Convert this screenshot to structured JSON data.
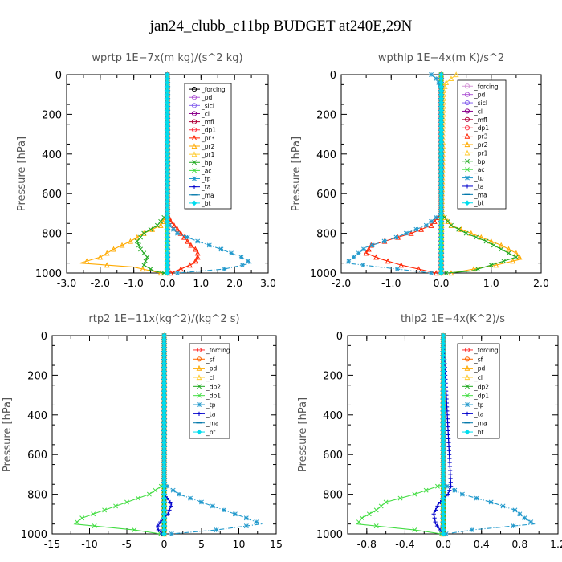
{
  "figure": {
    "title": "jan24_clubb_c11bp  BUDGET at240E,29N"
  },
  "chart_data": [
    {
      "type": "line",
      "title": "wprtp   1E−7x(m kg)/(s^2 kg)",
      "ylabel": "Pressure [hPa]",
      "xlim": [
        -3.0,
        3.0
      ],
      "ylim": [
        1000,
        0
      ],
      "x_tick_labels": [
        "-3.0",
        "-2.0",
        "-1.0",
        "0.0",
        "1.0",
        "2.0",
        "3.0"
      ],
      "y_tick_labels": [
        "0",
        "200",
        "400",
        "600",
        "800",
        "1000"
      ],
      "legend": [
        "_forcing",
        "_pd",
        "_sicl",
        "_cl",
        "_mfl",
        "_dp1",
        "_pr3",
        "_pr2",
        "_pr1",
        "_bp",
        "_ac",
        "_tp",
        "_ta",
        "_ma",
        "_bt"
      ],
      "series": [
        {
          "name": "_forcing",
          "color": "#000000",
          "marker": "circle",
          "p": [
            0,
            1000
          ],
          "x": [
            0,
            0
          ]
        },
        {
          "name": "_pd",
          "color": "#b05ad6",
          "marker": "circle",
          "p": [
            0,
            1000
          ],
          "x": [
            0,
            0
          ]
        },
        {
          "name": "_sicl",
          "color": "#8866ee",
          "marker": "circle",
          "p": [
            0,
            1000
          ],
          "x": [
            0,
            0
          ]
        },
        {
          "name": "_cl",
          "color": "#8b008b",
          "marker": "circle",
          "p": [
            0,
            1000
          ],
          "x": [
            0,
            0
          ]
        },
        {
          "name": "_mfl",
          "color": "#b0003a",
          "marker": "circle",
          "p": [
            0,
            1000
          ],
          "x": [
            0,
            0
          ]
        },
        {
          "name": "_dp1",
          "color": "#ff3344",
          "marker": "circle",
          "p": [
            0,
            1000
          ],
          "x": [
            0,
            0
          ]
        },
        {
          "name": "_pr3",
          "color": "#ff2200",
          "marker": "triangle",
          "p": [
            0,
            700,
            740,
            780,
            820,
            860,
            890,
            920,
            950,
            980,
            1000
          ],
          "x": [
            0,
            0,
            0.1,
            0.3,
            0.5,
            0.7,
            0.9,
            0.9,
            0.8,
            0.4,
            0.1
          ]
        },
        {
          "name": "_pr2",
          "color": "#ffaa00",
          "marker": "triangle",
          "p": [
            0,
            700,
            760,
            800,
            840,
            880,
            920,
            950,
            970,
            1000
          ],
          "x": [
            0,
            0,
            -0.2,
            -0.7,
            -1.1,
            -1.6,
            -2.0,
            -2.6,
            -1.0,
            -0.2
          ]
        },
        {
          "name": "_pr1",
          "color": "#ffcc33",
          "marker": "triangle",
          "p": [
            0,
            1000
          ],
          "x": [
            0,
            0
          ]
        },
        {
          "name": "_bp",
          "color": "#22aa22",
          "marker": "cross",
          "p": [
            0,
            700,
            760,
            800,
            840,
            880,
            920,
            960,
            990,
            1000
          ],
          "x": [
            0,
            0,
            -0.3,
            -0.7,
            -0.9,
            -0.8,
            -0.6,
            -0.7,
            -0.4,
            -0.1
          ]
        },
        {
          "name": "_ac",
          "color": "#44dd44",
          "marker": "cross",
          "p": [
            0,
            1000
          ],
          "x": [
            0,
            0
          ]
        },
        {
          "name": "_tp",
          "color": "#2299cc",
          "marker": "star",
          "p": [
            0,
            750,
            800,
            840,
            880,
            920,
            950,
            980,
            1000
          ],
          "x": [
            0,
            0,
            0.3,
            0.9,
            1.6,
            2.2,
            2.5,
            1.7,
            0.3
          ]
        },
        {
          "name": "_ta",
          "color": "#0000cc",
          "marker": "plus",
          "p": [
            0,
            1000
          ],
          "x": [
            0,
            0
          ]
        },
        {
          "name": "_ma",
          "color": "#0077aa",
          "marker": "dash",
          "p": [
            0,
            1000
          ],
          "x": [
            0,
            0
          ]
        },
        {
          "name": "_bt",
          "color": "#00ddee",
          "marker": "diamond",
          "p": [
            0,
            1000
          ],
          "x": [
            0,
            0
          ]
        }
      ]
    },
    {
      "type": "line",
      "title": "wpthlp   1E−4x(m K)/s^2",
      "ylabel": "Pressure [hPa]",
      "xlim": [
        -2.0,
        2.0
      ],
      "ylim": [
        1000,
        0
      ],
      "x_tick_labels": [
        "-2.0",
        "-1.0",
        "0.0",
        "1.0",
        "2.0"
      ],
      "y_tick_labels": [
        "0",
        "200",
        "400",
        "600",
        "800",
        "1000"
      ],
      "legend": [
        "_forcing",
        "_pd",
        "_sicl",
        "_cl",
        "_mfl",
        "_dp1",
        "_pr3",
        "_pr2",
        "_pr1",
        "_bp",
        "_ac",
        "_tp",
        "_ta",
        "_ma",
        "_bt"
      ],
      "series": [
        {
          "name": "_forcing",
          "color": "#d79ad9",
          "marker": "circle",
          "p": [
            0,
            1000
          ],
          "x": [
            0,
            0
          ]
        },
        {
          "name": "_pd",
          "color": "#b05ad6",
          "marker": "circle",
          "p": [
            0,
            1000
          ],
          "x": [
            0,
            0
          ]
        },
        {
          "name": "_sicl",
          "color": "#8866ee",
          "marker": "circle",
          "p": [
            0,
            1000
          ],
          "x": [
            0,
            0
          ]
        },
        {
          "name": "_cl",
          "color": "#8b008b",
          "marker": "circle",
          "p": [
            0,
            1000
          ],
          "x": [
            0,
            0
          ]
        },
        {
          "name": "_mfl",
          "color": "#b0003a",
          "marker": "circle",
          "p": [
            0,
            1000
          ],
          "x": [
            0,
            0
          ]
        },
        {
          "name": "_dp1",
          "color": "#ff3344",
          "marker": "circle",
          "p": [
            0,
            1000
          ],
          "x": [
            0,
            0
          ]
        },
        {
          "name": "_pr3",
          "color": "#ff2200",
          "marker": "triangle",
          "p": [
            0,
            700,
            760,
            800,
            830,
            860,
            900,
            930,
            960,
            1000
          ],
          "x": [
            0,
            0,
            -0.2,
            -0.6,
            -1.0,
            -1.4,
            -1.5,
            -1.2,
            -0.8,
            -0.1
          ]
        },
        {
          "name": "_pr2",
          "color": "#ffaa00",
          "marker": "triangle",
          "p": [
            0,
            700,
            760,
            800,
            830,
            860,
            900,
            930,
            960,
            1000
          ],
          "x": [
            0,
            0,
            0.2,
            0.6,
            0.9,
            1.2,
            1.5,
            1.6,
            1.1,
            0.2
          ]
        },
        {
          "name": "_pr1",
          "color": "#ffcc33",
          "marker": "triangle",
          "p": [
            0,
            20,
            40,
            80,
            1000
          ],
          "x": [
            0.3,
            0.2,
            0.1,
            0.05,
            0
          ]
        },
        {
          "name": "_bp",
          "color": "#22aa22",
          "marker": "cross",
          "p": [
            0,
            700,
            760,
            800,
            840,
            880,
            920,
            960,
            990,
            1000
          ],
          "x": [
            0,
            0,
            0.2,
            0.5,
            0.9,
            1.2,
            1.5,
            1.0,
            0.6,
            0.1
          ]
        },
        {
          "name": "_ac",
          "color": "#44dd44",
          "marker": "cross",
          "p": [
            0,
            1000
          ],
          "x": [
            0,
            0
          ]
        },
        {
          "name": "_tp",
          "color": "#2299cc",
          "marker": "star",
          "p": [
            0,
            20,
            40,
            80,
            700,
            760,
            820,
            870,
            910,
            950,
            1000
          ],
          "x": [
            -0.2,
            -0.1,
            -0.05,
            0,
            0,
            -0.3,
            -0.9,
            -1.5,
            -1.7,
            -1.9,
            -0.2
          ]
        },
        {
          "name": "_ta",
          "color": "#0000cc",
          "marker": "plus",
          "p": [
            0,
            1000
          ],
          "x": [
            0,
            0
          ]
        },
        {
          "name": "_ma",
          "color": "#0077aa",
          "marker": "dash",
          "p": [
            0,
            1000
          ],
          "x": [
            0,
            0
          ]
        },
        {
          "name": "_bt",
          "color": "#00ddee",
          "marker": "diamond",
          "p": [
            0,
            1000
          ],
          "x": [
            0,
            0
          ]
        }
      ]
    },
    {
      "type": "line",
      "title": "rtp2   1E−11x(kg^2)/(kg^2 s)",
      "ylabel": "Pressure [hPa]",
      "xlim": [
        -15,
        15
      ],
      "ylim": [
        1000,
        0
      ],
      "x_tick_labels": [
        "-15",
        "-10",
        "-5",
        "0",
        "5",
        "10",
        "15"
      ],
      "y_tick_labels": [
        "0",
        "200",
        "400",
        "600",
        "800",
        "1000"
      ],
      "legend": [
        "_forcing",
        "_sf",
        "_pd",
        "_cl",
        "_dp2",
        "_dp1",
        "_tp",
        "_ta",
        "_ma",
        "_bt"
      ],
      "series": [
        {
          "name": "_forcing",
          "color": "#ff3333",
          "marker": "circle",
          "p": [
            0,
            1000
          ],
          "x": [
            0,
            0
          ]
        },
        {
          "name": "_sf",
          "color": "#ff6600",
          "marker": "circle",
          "p": [
            0,
            1000
          ],
          "x": [
            0,
            0
          ]
        },
        {
          "name": "_pd",
          "color": "#ffaa00",
          "marker": "triangle",
          "p": [
            0,
            1000
          ],
          "x": [
            0,
            0
          ]
        },
        {
          "name": "_cl",
          "color": "#ffcc33",
          "marker": "triangle",
          "p": [
            0,
            1000
          ],
          "x": [
            0,
            0
          ]
        },
        {
          "name": "_dp2",
          "color": "#22aa22",
          "marker": "cross",
          "p": [
            0,
            1000
          ],
          "x": [
            0,
            0
          ]
        },
        {
          "name": "_dp1",
          "color": "#44dd44",
          "marker": "cross",
          "p": [
            0,
            750,
            800,
            840,
            880,
            920,
            950,
            980,
            1000
          ],
          "x": [
            0,
            0,
            -2,
            -5,
            -8,
            -11,
            -12,
            -4,
            -0.5
          ]
        },
        {
          "name": "_tp",
          "color": "#2299cc",
          "marker": "star",
          "p": [
            0,
            750,
            800,
            840,
            880,
            920,
            950,
            980,
            1000
          ],
          "x": [
            0,
            0,
            2,
            5,
            8,
            11,
            13,
            7,
            1
          ]
        },
        {
          "name": "_ta",
          "color": "#0000cc",
          "marker": "plus",
          "p": [
            0,
            800,
            850,
            900,
            940,
            970,
            1000
          ],
          "x": [
            0,
            0,
            1,
            0.5,
            -0.5,
            -1,
            -0.3
          ]
        },
        {
          "name": "_ma",
          "color": "#0077aa",
          "marker": "dash",
          "p": [
            0,
            1000
          ],
          "x": [
            0,
            0
          ]
        },
        {
          "name": "_bt",
          "color": "#00ddee",
          "marker": "diamond",
          "p": [
            0,
            1000
          ],
          "x": [
            0,
            0
          ]
        }
      ]
    },
    {
      "type": "line",
      "title": "thlp2   1E−4x(K^2)/s",
      "ylabel": "Pressure [hPa]",
      "xlim": [
        -1.0,
        1.2
      ],
      "ylim": [
        1000,
        0
      ],
      "x_tick_labels": [
        "-0.8",
        "-0.4",
        "0.0",
        "0.4",
        "0.8",
        "1.2"
      ],
      "x_tick_values": [
        -0.8,
        -0.4,
        0.0,
        0.4,
        0.8,
        1.2
      ],
      "y_tick_labels": [
        "0",
        "200",
        "400",
        "600",
        "800",
        "1000"
      ],
      "legend": [
        "_forcing",
        "_sf",
        "_pd",
        "_cl",
        "_dp2",
        "_dp1",
        "_tp",
        "_ta",
        "_ma",
        "_bt"
      ],
      "series": [
        {
          "name": "_forcing",
          "color": "#ff3333",
          "marker": "circle",
          "p": [
            0,
            1000
          ],
          "x": [
            0,
            0
          ]
        },
        {
          "name": "_sf",
          "color": "#ff6600",
          "marker": "circle",
          "p": [
            0,
            1000
          ],
          "x": [
            0,
            0
          ]
        },
        {
          "name": "_pd",
          "color": "#ffaa00",
          "marker": "triangle",
          "p": [
            0,
            1000
          ],
          "x": [
            0,
            0
          ]
        },
        {
          "name": "_cl",
          "color": "#ffcc33",
          "marker": "triangle",
          "p": [
            0,
            1000
          ],
          "x": [
            0,
            0
          ]
        },
        {
          "name": "_dp2",
          "color": "#22aa22",
          "marker": "cross",
          "p": [
            0,
            1000
          ],
          "x": [
            0,
            0
          ]
        },
        {
          "name": "_dp1",
          "color": "#44dd44",
          "marker": "cross",
          "p": [
            0,
            750,
            800,
            840,
            880,
            920,
            950,
            980,
            1000
          ],
          "x": [
            0,
            0,
            -0.3,
            -0.6,
            -0.7,
            -0.85,
            -0.9,
            -0.3,
            -0.02
          ]
        },
        {
          "name": "_tp",
          "color": "#2299cc",
          "marker": "star",
          "p": [
            0,
            750,
            800,
            840,
            880,
            920,
            950,
            980,
            1000
          ],
          "x": [
            0,
            0,
            0.2,
            0.5,
            0.75,
            0.85,
            0.95,
            0.3,
            0.03
          ]
        },
        {
          "name": "_ta",
          "color": "#0000cc",
          "marker": "plus",
          "p": [
            0,
            760,
            800,
            850,
            900,
            950,
            1000
          ],
          "x": [
            0,
            0.08,
            0.05,
            -0.05,
            -0.1,
            -0.08,
            0
          ]
        },
        {
          "name": "_ma",
          "color": "#0077aa",
          "marker": "dash",
          "p": [
            0,
            1000
          ],
          "x": [
            0,
            0
          ]
        },
        {
          "name": "_bt",
          "color": "#00ddee",
          "marker": "diamond",
          "p": [
            0,
            1000
          ],
          "x": [
            0,
            0
          ]
        }
      ]
    }
  ]
}
